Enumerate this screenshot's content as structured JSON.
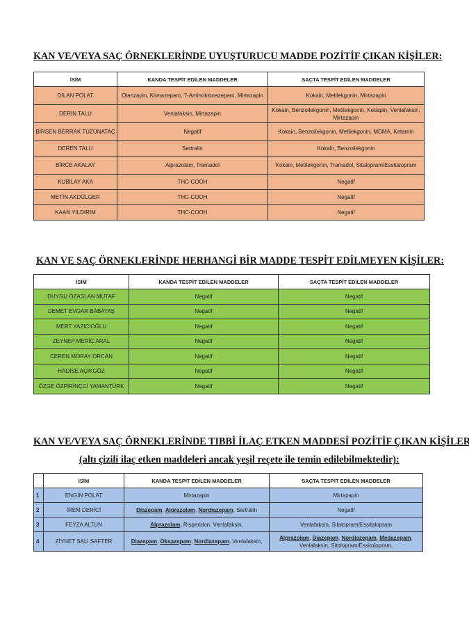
{
  "section1": {
    "title": "KAN VE/VEYA SAÇ ÖRNEKLERİNDE UYUŞTURUCU MADDE POZİTİF ÇIKAN KİŞİLER:",
    "headers": [
      "İSİM",
      "KANDA TESPİT EDİLEN MADDELER",
      "SAÇTA TESPİT EDİLEN MADDELER"
    ],
    "row_color": "#f0b48f",
    "rows": [
      [
        "DİLAN POLAT",
        "Olanzapin, Klonazepam, 7-Aminoklonazepam, Mirtazapin",
        "Kokain, Metilekgonin, Mirtazapin"
      ],
      [
        "DERİN TALU",
        "Venlafaksin, Mirtazapin",
        "Kokain, Benzoilekgonin, Metilekgonin, Ketiapin, Venlafaksin, Mirtazapin"
      ],
      [
        "BİRSEN BERRAK TÜZÜNATAÇ",
        "Negatif",
        "Kokain, Benzoilekgonin, Metilekgonin, MDMA, Ketamin"
      ],
      [
        "DEREN TALU",
        "Sertralin",
        "Kokain, Benzoilekgonin"
      ],
      [
        "BİRCE AKALAY",
        "Alprazolam, Tramadol",
        "Kokain, Metilekgonin, Tramadol, Sitalopram/Essitalopram"
      ],
      [
        "KUBİLAY AKA",
        "THC-COOH",
        "Negatif"
      ],
      [
        "METİN AKDÜLGER",
        "THC-COOH",
        "Negatif"
      ],
      [
        "KAAN YILDIRIM",
        "THC-COOH",
        "Negatif"
      ]
    ]
  },
  "section2": {
    "title": "KAN VE SAÇ ÖRNEKLERİNDE HERHANGİ BİR MADDE TESPİT EDİLMEYEN KİŞİLER:",
    "headers": [
      "İSİM",
      "KANDA TESPİT EDİLEN MADDELER",
      "SAÇTA TESPİT EDİLEN MADDELER"
    ],
    "row_color": "#8fcb52",
    "rows": [
      [
        "DUYGU ÖZASLAN MUTAF",
        "Negatif",
        "Negatif"
      ],
      [
        "DEMET EVGAR BABATAŞ",
        "Negatif",
        "Negatif"
      ],
      [
        "MERT YAZICIOĞLU",
        "Negatif",
        "Negatif"
      ],
      [
        "ZEYNEP MERİÇ ARAL",
        "Negatif",
        "Negatif"
      ],
      [
        "CEREN MORAY ORCAN",
        "Negatif",
        "Negatif"
      ],
      [
        "HADİSE AÇIKGÖZ",
        "Negatif",
        "Negatif"
      ],
      [
        "ÖZGE ÖZPİRİNÇCİ YAMANTÜRK",
        "Negatif",
        "Negatif"
      ]
    ]
  },
  "section3": {
    "title": "KAN VE/VEYA SAÇ ÖRNEKLERİNDE TIBBİ İLAÇ ETKEN MADDESİ POZİTİF ÇIKAN KİŞİLER",
    "subtitle": "(altı çizili ilaç etken maddeleri ancak yeşil reçete ile temin edilebilmektedir):",
    "headers": [
      "",
      "İSİM",
      "KANDA TESPİT EDİLEN MADDELER",
      "SAÇTA TESPİT EDİLEN MADDELER"
    ],
    "row_color": "#a7c4e8",
    "rows": [
      {
        "num": "1",
        "name": "ENGİN POLAT",
        "blood": [
          {
            "t": "Mirtazapin",
            "u": false
          }
        ],
        "hair": [
          {
            "t": "Mirtazapin",
            "u": false
          }
        ]
      },
      {
        "num": "2",
        "name": "İREM DERİCİ",
        "blood": [
          {
            "t": "Diazepam",
            "u": true
          },
          {
            "t": ", ",
            "u": false
          },
          {
            "t": "Alprazolam",
            "u": true
          },
          {
            "t": ", ",
            "u": false
          },
          {
            "t": "Nordiazepam",
            "u": true
          },
          {
            "t": ", Sertralin",
            "u": false
          }
        ],
        "hair": [
          {
            "t": "Negatif",
            "u": false
          }
        ]
      },
      {
        "num": "3",
        "name": "FEYZA ALTUN",
        "blood": [
          {
            "t": "Alprazolam,",
            "u": true
          },
          {
            "t": " Risperidon, Venlafaksin,",
            "u": false
          }
        ],
        "hair": [
          {
            "t": "Venlafaksin, Sitalopram/Essitalopram",
            "u": false
          }
        ]
      },
      {
        "num": "4",
        "name": "ZİYNET SALİ SAFTER",
        "blood": [
          {
            "t": "Diazepam",
            "u": true
          },
          {
            "t": ", ",
            "u": false
          },
          {
            "t": "Oksazepam",
            "u": true
          },
          {
            "t": ", ",
            "u": false
          },
          {
            "t": "Nordiazepam",
            "u": true
          },
          {
            "t": ", Venlafaksin,",
            "u": false
          }
        ],
        "hair": [
          {
            "t": "Alprazolam",
            "u": true
          },
          {
            "t": ", ",
            "u": false
          },
          {
            "t": "Diazepam",
            "u": true
          },
          {
            "t": ", ",
            "u": false
          },
          {
            "t": "Nordiazepam",
            "u": true
          },
          {
            "t": ", ",
            "u": false
          },
          {
            "t": "Medazepam",
            "u": true
          },
          {
            "t": ",",
            "u": false
          },
          {
            "t": "\n",
            "u": false
          },
          {
            "t": "Venlafaksin, Sitolopram/Essitolopram,",
            "u": false
          }
        ]
      }
    ]
  }
}
